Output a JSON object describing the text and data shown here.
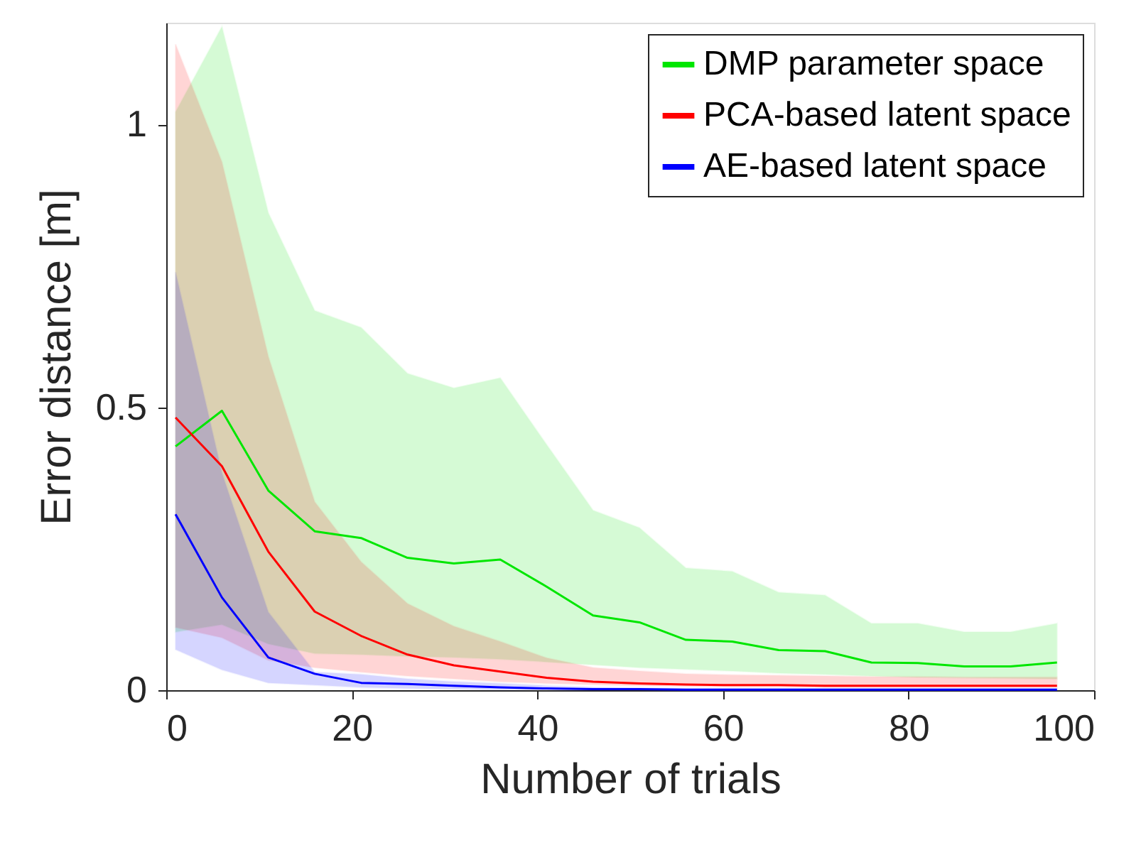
{
  "chart_data": {
    "type": "line",
    "xlabel": "Number of trials",
    "ylabel": "Error distance [m]",
    "x": [
      1,
      6,
      11,
      16,
      21,
      26,
      31,
      36,
      41,
      46,
      51,
      56,
      61,
      66,
      71,
      76,
      81,
      86,
      91,
      96
    ],
    "series": [
      {
        "name": "DMP parameter space",
        "color": "#00e600",
        "values": [
          0.431,
          0.494,
          0.353,
          0.281,
          0.269,
          0.234,
          0.224,
          0.231,
          0.183,
          0.132,
          0.12,
          0.089,
          0.086,
          0.071,
          0.069,
          0.049,
          0.048,
          0.042,
          0.042,
          0.049
        ],
        "lower": [
          0.103,
          0.116,
          0.082,
          0.065,
          0.063,
          0.06,
          0.058,
          0.055,
          0.05,
          0.045,
          0.04,
          0.037,
          0.034,
          0.03,
          0.028,
          0.025,
          0.023,
          0.022,
          0.021,
          0.02
        ],
        "upper": [
          1.022,
          1.173,
          0.844,
          0.671,
          0.641,
          0.56,
          0.534,
          0.552,
          0.434,
          0.318,
          0.287,
          0.216,
          0.21,
          0.173,
          0.168,
          0.118,
          0.118,
          0.103,
          0.103,
          0.118
        ]
      },
      {
        "name": "PCA-based latent space",
        "color": "#ff0000",
        "values": [
          0.482,
          0.396,
          0.245,
          0.139,
          0.096,
          0.063,
          0.044,
          0.033,
          0.022,
          0.015,
          0.012,
          0.01,
          0.009,
          0.009,
          0.008,
          0.008,
          0.008,
          0.008,
          0.008,
          0.008
        ],
        "lower": [
          0.111,
          0.093,
          0.053,
          0.04,
          0.032,
          0.025,
          0.02,
          0.015,
          0.012,
          0.01,
          0.008,
          0.007,
          0.006,
          0.006,
          0.005,
          0.005,
          0.005,
          0.005,
          0.005,
          0.005
        ],
        "upper": [
          1.142,
          0.934,
          0.59,
          0.333,
          0.227,
          0.153,
          0.113,
          0.086,
          0.057,
          0.04,
          0.034,
          0.029,
          0.027,
          0.026,
          0.025,
          0.024,
          0.024,
          0.023,
          0.023,
          0.023
        ]
      },
      {
        "name": "AE-based latent space",
        "color": "#0000ff",
        "values": [
          0.311,
          0.164,
          0.058,
          0.029,
          0.013,
          0.011,
          0.008,
          0.005,
          0.003,
          0.002,
          0.002,
          0.001,
          0.001,
          0.001,
          0.001,
          0.001,
          0.001,
          0.001,
          0.001,
          0.001
        ],
        "lower": [
          0.072,
          0.036,
          0.013,
          0.009,
          0.005,
          0.003,
          0.002,
          0.001,
          0.001,
          0.0,
          0.0,
          0.0,
          0.0,
          0.0,
          0.0,
          0.0,
          0.0,
          0.0,
          0.0,
          0.0
        ],
        "upper": [
          0.739,
          0.384,
          0.138,
          0.032,
          0.028,
          0.02,
          0.015,
          0.012,
          0.008,
          0.005,
          0.004,
          0.003,
          0.003,
          0.003,
          0.003,
          0.003,
          0.003,
          0.003,
          0.003,
          0.003
        ]
      }
    ],
    "xlim": [
      0,
      100
    ],
    "xticks": [
      0,
      20,
      40,
      60,
      80,
      100
    ],
    "ylim": [
      0,
      1.18
    ],
    "yticks": [
      0,
      0.5,
      1
    ],
    "grid": false,
    "legend": "top right",
    "marker": "none",
    "line_style": "solid"
  }
}
